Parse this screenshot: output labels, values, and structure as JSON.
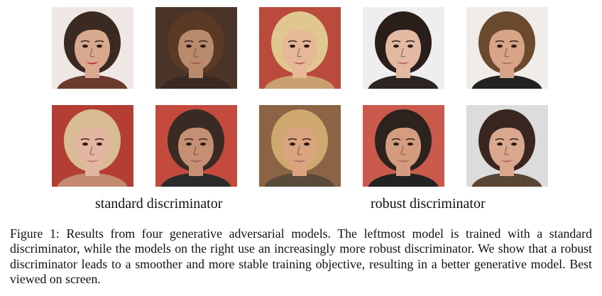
{
  "figure": {
    "rows": [
      [
        {
          "name": "face-r1c1",
          "bg": "#efe7e4",
          "skin": "#d9a98f",
          "hair": "#3a2a22",
          "lips": "#c42a36",
          "clothes": "#6a3b2c"
        },
        {
          "name": "face-r1c2",
          "bg": "#4a3428",
          "skin": "#b98a6c",
          "hair": "#5a3a24",
          "lips": "#a35a56",
          "clothes": "#3a2a22"
        },
        {
          "name": "face-r1c3",
          "bg": "#b94a3c",
          "skin": "#e7b898",
          "hair": "#e0c790",
          "lips": "#b3565c",
          "clothes": "#caa070"
        },
        {
          "name": "face-r1c4",
          "bg": "#eeeeee",
          "skin": "#e3b9a2",
          "hair": "#2a1e1a",
          "lips": "#b96464",
          "clothes": "#2c2421"
        },
        {
          "name": "face-r1c5",
          "bg": "#f0ece8",
          "skin": "#d8a487",
          "hair": "#6a4a2e",
          "lips": "#a86e62",
          "clothes": "#222222"
        }
      ],
      [
        {
          "name": "face-r2c1",
          "bg": "#b43e33",
          "skin": "#e2b6a0",
          "hair": "#d8bc94",
          "lips": "#b27a70",
          "clothes": "#c48a70"
        },
        {
          "name": "face-r2c2",
          "bg": "#c44a3e",
          "skin": "#c48f72",
          "hair": "#3a2a24",
          "lips": "#9a5e56",
          "clothes": "#2b2b2b"
        },
        {
          "name": "face-r2c3",
          "bg": "#8a6444",
          "skin": "#d9a47e",
          "hair": "#cfa870",
          "lips": "#a86a5a",
          "clothes": "#5a4a3a"
        },
        {
          "name": "face-r2c4",
          "bg": "#c95a4c",
          "skin": "#d49c7e",
          "hair": "#2c221e",
          "lips": "#a46c60",
          "clothes": "#222222"
        },
        {
          "name": "face-r2c5",
          "bg": "#dcdcdc",
          "skin": "#d9a88e",
          "hair": "#3a2620",
          "lips": "#b26460",
          "clothes": "#5a4634"
        }
      ]
    ],
    "label_standard": "standard discriminator",
    "label_robust": "robust discriminator",
    "caption": "Figure 1: Results from four generative adversarial models. The leftmost model is trained with a standard discriminator, while the models on the right use an increasingly more robust discriminator. We show that a robust discriminator leads to a smoother and more stable training objective, resulting in a better generative model. Best viewed on screen."
  }
}
